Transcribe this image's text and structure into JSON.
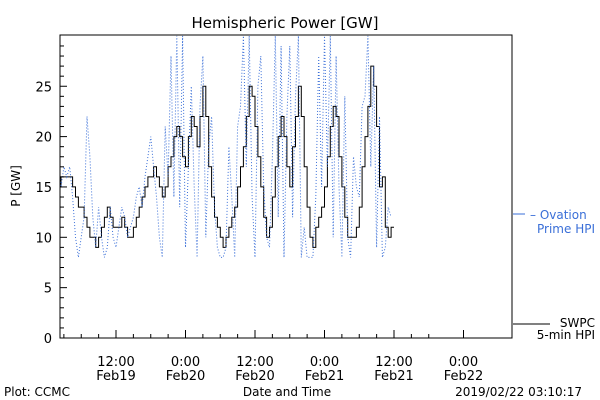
{
  "chart_data": {
    "type": "line",
    "title": "Hemispheric Power [GW]",
    "xlabel": "Date and Time",
    "ylabel": "P [GW]",
    "ylim": [
      0,
      30
    ],
    "yticks": [
      0,
      5,
      10,
      15,
      20,
      25
    ],
    "xlim_hours": [
      -16.5,
      66.5
    ],
    "xticks": [
      {
        "t": 12,
        "time": "12:00",
        "date": "Feb19"
      },
      {
        "t": 24,
        "time": "0:00",
        "date": "Feb20"
      },
      {
        "t": 36,
        "time": "12:00",
        "date": "Feb20"
      },
      {
        "t": 48,
        "time": "0:00",
        "date": "Feb21"
      },
      {
        "t": 60,
        "time": "12:00",
        "date": "Feb21"
      },
      {
        "t": 72,
        "time": "0:00",
        "date": "Feb22"
      }
    ],
    "series": [
      {
        "name": "SWPC 5-min HPI",
        "legend": [
          "SWPC",
          "5-min HPI"
        ],
        "color": "#000000",
        "style": "solid-step",
        "points": [
          [
            -16.5,
            13
          ],
          [
            -16,
            13
          ],
          [
            -15.5,
            12
          ],
          [
            -15,
            11
          ],
          [
            -14.5,
            12
          ],
          [
            -14,
            14
          ],
          [
            -13.5,
            15
          ],
          [
            -13,
            16
          ],
          [
            -12.5,
            17
          ],
          [
            -12,
            18
          ],
          [
            -11.5,
            17
          ],
          [
            -11,
            16
          ],
          [
            -10.5,
            15
          ],
          [
            -10,
            13
          ],
          [
            -9.5,
            12
          ],
          [
            -9,
            12
          ],
          [
            -8.5,
            13
          ],
          [
            -8,
            14
          ],
          [
            -7.5,
            15
          ],
          [
            -7,
            15
          ],
          [
            -6.5,
            16
          ],
          [
            -6,
            17
          ],
          [
            -5.5,
            17
          ],
          [
            -5,
            17
          ],
          [
            -4.5,
            16
          ],
          [
            -4,
            15
          ],
          [
            -3.5,
            16
          ],
          [
            -3,
            16
          ],
          [
            -2.5,
            15
          ],
          [
            -2,
            16
          ],
          [
            -1.5,
            16
          ],
          [
            -1,
            16
          ],
          [
            -0.5,
            15
          ],
          [
            0,
            15
          ],
          [
            0.5,
            14
          ],
          [
            1,
            13
          ],
          [
            1.5,
            14
          ],
          [
            2,
            15
          ],
          [
            2.5,
            16
          ],
          [
            3,
            16
          ],
          [
            3.5,
            16
          ],
          [
            4,
            16
          ],
          [
            4.5,
            15
          ],
          [
            5,
            14
          ],
          [
            5.5,
            13
          ],
          [
            6,
            13
          ],
          [
            6.5,
            12
          ],
          [
            7,
            11
          ],
          [
            7.5,
            10
          ],
          [
            8,
            10
          ],
          [
            8.5,
            9
          ],
          [
            9,
            10
          ],
          [
            9.5,
            11
          ],
          [
            10,
            12
          ],
          [
            10.5,
            13
          ],
          [
            11,
            12
          ],
          [
            11.5,
            11
          ],
          [
            12,
            11
          ],
          [
            12.5,
            11
          ],
          [
            13,
            12
          ],
          [
            13.5,
            11
          ],
          [
            14,
            10
          ],
          [
            14.5,
            10
          ],
          [
            15,
            11
          ],
          [
            15.5,
            12
          ],
          [
            16,
            13
          ],
          [
            16.5,
            14
          ],
          [
            17,
            15
          ],
          [
            17.5,
            16
          ],
          [
            18,
            16
          ],
          [
            18.5,
            17
          ],
          [
            19,
            16
          ],
          [
            19.5,
            15
          ],
          [
            20,
            14
          ],
          [
            20.5,
            15
          ],
          [
            21,
            17
          ],
          [
            21.5,
            18
          ],
          [
            22,
            20
          ],
          [
            22.5,
            21
          ],
          [
            23,
            20
          ],
          [
            23.5,
            18
          ],
          [
            24,
            17
          ],
          [
            24.5,
            20
          ],
          [
            25,
            22
          ],
          [
            25.5,
            21
          ],
          [
            26,
            19
          ],
          [
            26.5,
            22
          ],
          [
            27,
            25
          ],
          [
            27.5,
            22
          ],
          [
            28,
            17
          ],
          [
            28.5,
            14
          ],
          [
            29,
            12
          ],
          [
            29.5,
            11
          ],
          [
            30,
            10
          ],
          [
            30.5,
            9
          ],
          [
            31,
            10
          ],
          [
            31.5,
            11
          ],
          [
            32,
            12
          ],
          [
            32.5,
            13
          ],
          [
            33,
            15
          ],
          [
            33.5,
            17
          ],
          [
            34,
            19
          ],
          [
            34.5,
            22
          ],
          [
            35,
            25
          ],
          [
            35.5,
            24
          ],
          [
            36,
            21
          ],
          [
            36.5,
            18
          ],
          [
            37,
            15
          ],
          [
            37.5,
            12
          ],
          [
            38,
            10
          ],
          [
            38.5,
            11
          ],
          [
            39,
            14
          ],
          [
            39.5,
            17
          ],
          [
            40,
            20
          ],
          [
            40.5,
            22
          ],
          [
            41,
            20
          ],
          [
            41.5,
            17
          ],
          [
            42,
            15
          ],
          [
            42.5,
            19
          ],
          [
            43,
            22
          ],
          [
            43.5,
            25
          ],
          [
            44,
            22
          ],
          [
            44.5,
            17
          ],
          [
            45,
            13
          ],
          [
            45.5,
            10
          ],
          [
            46,
            9
          ],
          [
            46.5,
            11
          ],
          [
            47,
            12
          ],
          [
            47.5,
            13
          ],
          [
            48,
            15
          ],
          [
            48.5,
            18
          ],
          [
            49,
            21
          ],
          [
            49.5,
            23
          ],
          [
            50,
            22
          ],
          [
            50.5,
            18
          ],
          [
            51,
            15
          ],
          [
            51.5,
            12
          ],
          [
            52,
            10
          ],
          [
            52.5,
            10
          ],
          [
            53,
            10
          ],
          [
            53.5,
            11
          ],
          [
            54,
            13
          ],
          [
            54.5,
            17
          ],
          [
            55,
            20
          ],
          [
            55.5,
            23
          ],
          [
            56,
            27
          ],
          [
            56.5,
            25
          ],
          [
            57,
            21
          ],
          [
            57.5,
            15
          ],
          [
            58,
            16
          ],
          [
            58.5,
            11
          ],
          [
            59,
            10
          ],
          [
            59.5,
            11
          ]
        ]
      },
      {
        "name": "Ovation Prime HPI",
        "legend": [
          "Ovation",
          "Prime HPI"
        ],
        "color": "#3a6fd8",
        "style": "dotted",
        "points": [
          [
            -16.5,
            14
          ],
          [
            -16,
            18
          ],
          [
            -15.5,
            23
          ],
          [
            -15,
            21
          ],
          [
            -14.5,
            24
          ],
          [
            -14,
            20
          ],
          [
            -13.5,
            16
          ],
          [
            -13,
            14
          ],
          [
            -12.5,
            9
          ],
          [
            -12,
            13
          ],
          [
            -11.5,
            18
          ],
          [
            -11,
            13
          ],
          [
            -10.5,
            10
          ],
          [
            -10,
            9
          ],
          [
            -9.5,
            21
          ],
          [
            -9,
            18
          ],
          [
            -8.5,
            23
          ],
          [
            -8,
            17
          ],
          [
            -7.5,
            12
          ],
          [
            -7,
            10
          ],
          [
            -6.5,
            12
          ],
          [
            -6,
            22
          ],
          [
            -5.5,
            17
          ],
          [
            -5,
            15
          ],
          [
            -4.5,
            23
          ],
          [
            -4,
            16
          ],
          [
            -3.5,
            21
          ],
          [
            -3,
            17
          ],
          [
            -2.5,
            14
          ],
          [
            -2,
            17
          ],
          [
            -1.5,
            15
          ],
          [
            -1,
            16
          ],
          [
            -0.5,
            22
          ],
          [
            0,
            17
          ],
          [
            0.5,
            13
          ],
          [
            1,
            12
          ],
          [
            1.5,
            14
          ],
          [
            2,
            18
          ],
          [
            2.5,
            15
          ],
          [
            3,
            17
          ],
          [
            3.5,
            16
          ],
          [
            4,
            17
          ],
          [
            4.5,
            14
          ],
          [
            5,
            10
          ],
          [
            5.5,
            8
          ],
          [
            6,
            10
          ],
          [
            6.5,
            12
          ],
          [
            7,
            22
          ],
          [
            7.5,
            18
          ],
          [
            8,
            12
          ],
          [
            8.5,
            9
          ],
          [
            9,
            13
          ],
          [
            9.5,
            10
          ],
          [
            10,
            8
          ],
          [
            10.5,
            9
          ],
          [
            11,
            13
          ],
          [
            11.5,
            10
          ],
          [
            12,
            9
          ],
          [
            12.5,
            11
          ],
          [
            13,
            13
          ],
          [
            13.5,
            12
          ],
          [
            14,
            10
          ],
          [
            14.5,
            11
          ],
          [
            15,
            12
          ],
          [
            15.5,
            14
          ],
          [
            16,
            15
          ],
          [
            16.5,
            13
          ],
          [
            17,
            16
          ],
          [
            17.5,
            18
          ],
          [
            18,
            20
          ],
          [
            18.5,
            17
          ],
          [
            19,
            14
          ],
          [
            19.5,
            10
          ],
          [
            20,
            8
          ],
          [
            20.5,
            21
          ],
          [
            21,
            16
          ],
          [
            21.5,
            28
          ],
          [
            22,
            14
          ],
          [
            22.5,
            30
          ],
          [
            23,
            13
          ],
          [
            23.5,
            30
          ],
          [
            24,
            9
          ],
          [
            24.5,
            17
          ],
          [
            25,
            25
          ],
          [
            25.5,
            15
          ],
          [
            26,
            8
          ],
          [
            26.5,
            23
          ],
          [
            27,
            28
          ],
          [
            27.5,
            10
          ],
          [
            28,
            19
          ],
          [
            28.5,
            22
          ],
          [
            29,
            13
          ],
          [
            29.5,
            9
          ],
          [
            30,
            8
          ],
          [
            30.5,
            8
          ],
          [
            31,
            9
          ],
          [
            31.5,
            19
          ],
          [
            32,
            14
          ],
          [
            32.5,
            8
          ],
          [
            33,
            21
          ],
          [
            33.5,
            23
          ],
          [
            34,
            30
          ],
          [
            34.5,
            17
          ],
          [
            35,
            30
          ],
          [
            35.5,
            14
          ],
          [
            36,
            8
          ],
          [
            36.5,
            25
          ],
          [
            37,
            28
          ],
          [
            37.5,
            15
          ],
          [
            38,
            10
          ],
          [
            38.5,
            9
          ],
          [
            39,
            18
          ],
          [
            39.5,
            30
          ],
          [
            40,
            12
          ],
          [
            40.5,
            29
          ],
          [
            41,
            8
          ],
          [
            41.5,
            22
          ],
          [
            42,
            29
          ],
          [
            42.5,
            12
          ],
          [
            43,
            24
          ],
          [
            43.5,
            30
          ],
          [
            44,
            8
          ],
          [
            44.5,
            11
          ],
          [
            45,
            8
          ],
          [
            45.5,
            8
          ],
          [
            46,
            8
          ],
          [
            46.5,
            14
          ],
          [
            47,
            28
          ],
          [
            47.5,
            15
          ],
          [
            48,
            30
          ],
          [
            48.5,
            17
          ],
          [
            49,
            30
          ],
          [
            49.5,
            10
          ],
          [
            50,
            28
          ],
          [
            50.5,
            15
          ],
          [
            51,
            8
          ],
          [
            51.5,
            24
          ],
          [
            52,
            10
          ],
          [
            52.5,
            8
          ],
          [
            53,
            18
          ],
          [
            53.5,
            15
          ],
          [
            54,
            14
          ],
          [
            54.5,
            23
          ],
          [
            55,
            24
          ],
          [
            55.5,
            30
          ],
          [
            56,
            17
          ],
          [
            56.5,
            27
          ],
          [
            57,
            9
          ],
          [
            57.5,
            22
          ],
          [
            58,
            8
          ],
          [
            58.5,
            9
          ],
          [
            59,
            13
          ],
          [
            59.5,
            12
          ]
        ]
      }
    ],
    "grid": false,
    "legend_position": "right"
  },
  "footer": {
    "left": "Plot: CCMC",
    "right": "2019/02/22 03:10:17"
  }
}
